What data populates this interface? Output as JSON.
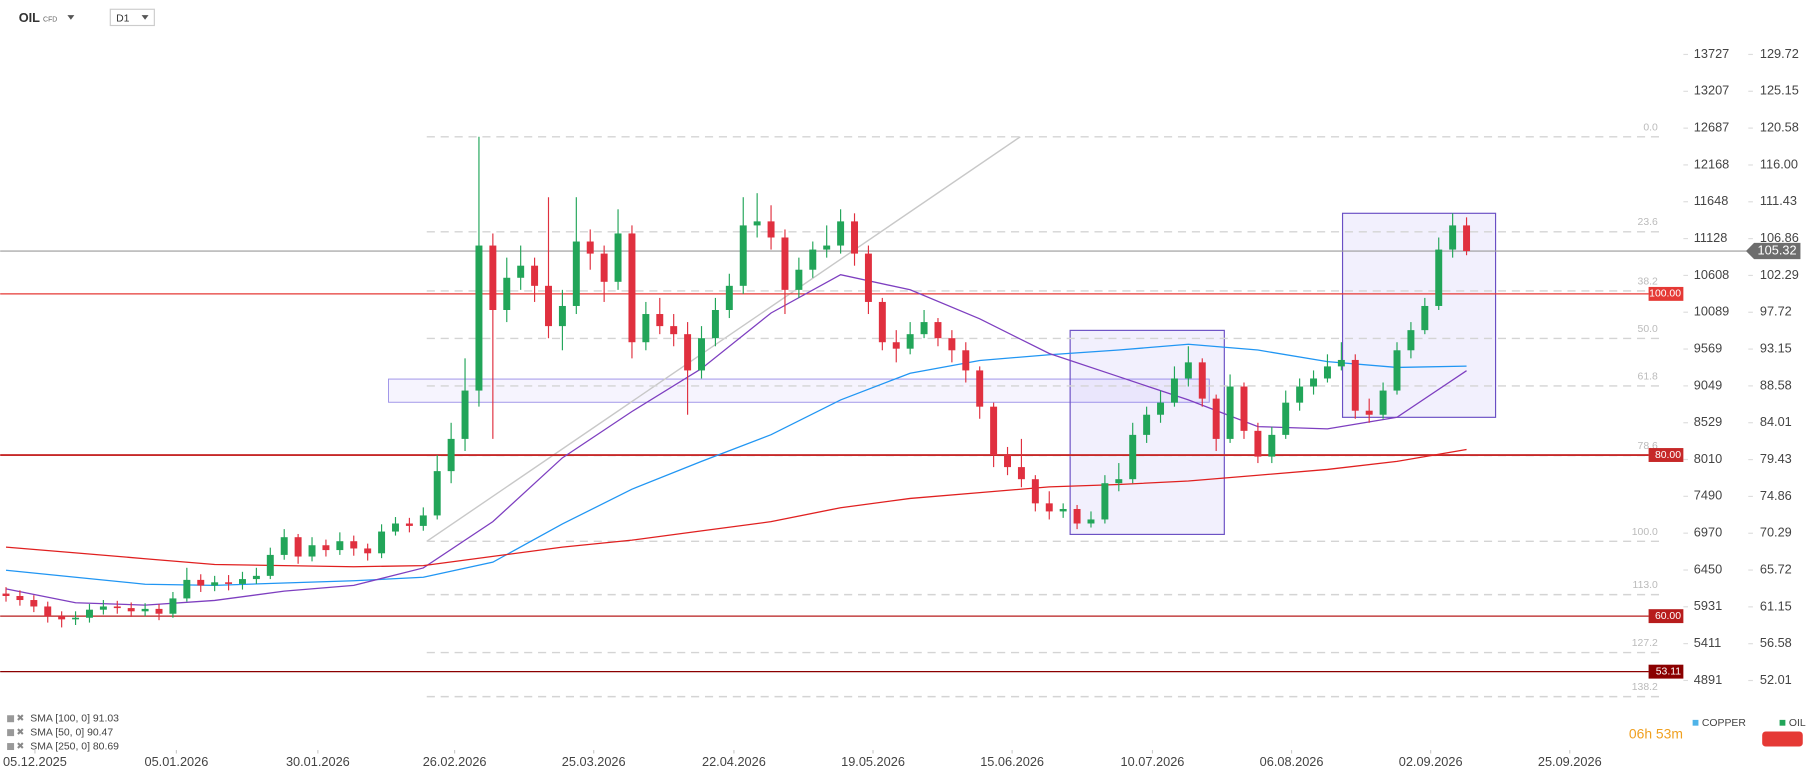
{
  "chart_data": {
    "type": "candlestick",
    "symbol": "OIL",
    "instrument_type": "CFD",
    "timeframe": "D1",
    "up_color": "#22a559",
    "down_color": "#e0303f",
    "x": [
      0,
      1,
      2,
      3,
      4,
      5,
      6,
      7,
      8,
      9,
      10,
      11,
      12,
      13,
      14,
      15,
      16,
      17,
      18,
      19,
      20,
      21,
      22,
      23,
      24,
      25,
      26,
      27,
      28,
      29,
      30,
      31,
      32,
      33,
      34,
      35,
      36,
      37,
      38,
      39,
      40,
      41,
      42,
      43,
      44,
      45,
      46,
      47,
      48,
      49,
      50,
      51,
      52,
      53,
      54,
      55,
      56,
      57,
      58,
      59,
      60,
      61,
      62,
      63,
      64,
      65,
      66,
      67,
      68,
      69,
      70,
      71,
      72,
      73,
      74,
      75,
      76,
      77,
      78,
      79,
      80,
      81,
      82,
      83,
      84,
      85,
      86,
      87,
      88,
      89,
      90,
      91,
      92,
      93,
      94,
      95,
      96,
      97,
      98,
      99,
      100,
      101,
      102,
      103,
      104,
      105
    ],
    "open": [
      62.8,
      62.5,
      62.0,
      61.2,
      60.0,
      59.6,
      59.8,
      60.8,
      61.2,
      61.0,
      60.6,
      60.9,
      60.3,
      62.2,
      64.5,
      63.8,
      64.2,
      64.0,
      64.6,
      65.0,
      67.6,
      69.8,
      67.4,
      68.8,
      68.2,
      69.3,
      68.4,
      67.8,
      70.5,
      71.5,
      71.2,
      72.5,
      78.0,
      82.0,
      88.0,
      106.0,
      98.0,
      102.0,
      103.5,
      101.0,
      96.0,
      98.5,
      106.5,
      105.0,
      101.5,
      107.5,
      94.0,
      97.5,
      96.0,
      95.0,
      90.5,
      94.5,
      98.0,
      101.0,
      108.5,
      109.0,
      107.0,
      100.5,
      103.0,
      105.5,
      106.0,
      109.0,
      105.0,
      99.0,
      94.0,
      93.2,
      95.0,
      96.5,
      94.5,
      93.0,
      90.5,
      86.0,
      80.0,
      78.5,
      77.0,
      74.0,
      73.0,
      73.3,
      71.5,
      72.0,
      76.5,
      77.0,
      82.5,
      85.0,
      86.5,
      89.5,
      91.5,
      87.0,
      82.0,
      88.5,
      83.0,
      79.8,
      82.5,
      86.5,
      88.5,
      89.5,
      91.0,
      91.8,
      85.5,
      85.0,
      88.0,
      93.0,
      95.5,
      98.5,
      105.5,
      108.5
    ],
    "high": [
      63.6,
      63.2,
      62.6,
      61.8,
      60.6,
      60.6,
      61.5,
      62.0,
      61.9,
      61.7,
      61.6,
      61.5,
      63.0,
      66.0,
      65.2,
      65.0,
      65.1,
      65.5,
      66.0,
      68.5,
      70.8,
      70.2,
      69.8,
      69.5,
      70.4,
      70.0,
      69.0,
      71.4,
      72.3,
      72.2,
      73.5,
      80.0,
      84.0,
      92.0,
      119.5,
      107.5,
      104.5,
      106.0,
      104.5,
      112.0,
      100.5,
      112.0,
      108.0,
      106.0,
      110.5,
      108.5,
      99.0,
      99.5,
      97.5,
      96.5,
      96.0,
      99.5,
      102.5,
      112.0,
      112.5,
      111.0,
      108.0,
      104.5,
      106.5,
      108.5,
      110.5,
      110.0,
      106.0,
      99.5,
      95.5,
      96.5,
      98.0,
      97.0,
      95.5,
      94.0,
      91.0,
      86.5,
      81.0,
      82.0,
      77.5,
      75.5,
      74.0,
      73.8,
      73.0,
      77.5,
      79.0,
      84.0,
      86.0,
      88.0,
      91.0,
      93.5,
      92.0,
      87.5,
      90.0,
      89.0,
      84.0,
      83.5,
      88.0,
      89.5,
      90.5,
      92.5,
      94.0,
      92.5,
      87.0,
      89.0,
      94.0,
      96.5,
      99.5,
      107.0,
      110.0,
      109.5
    ],
    "low": [
      61.8,
      61.3,
      60.5,
      59.2,
      58.6,
      58.9,
      59.2,
      60.2,
      60.3,
      59.9,
      60.0,
      59.5,
      59.8,
      61.8,
      63.0,
      63.1,
      63.2,
      63.3,
      64.0,
      64.6,
      67.0,
      66.5,
      66.8,
      67.4,
      67.6,
      67.5,
      66.9,
      67.2,
      70.0,
      70.4,
      70.6,
      72.0,
      76.5,
      80.5,
      86.0,
      82.0,
      96.5,
      100.5,
      99.0,
      94.5,
      93.0,
      97.5,
      103.0,
      99.0,
      100.5,
      92.0,
      93.0,
      95.0,
      93.5,
      85.0,
      89.5,
      93.5,
      97.0,
      100.0,
      107.0,
      105.5,
      97.5,
      99.5,
      102.0,
      104.5,
      105.0,
      103.5,
      97.5,
      93.0,
      91.5,
      92.5,
      94.5,
      93.5,
      91.5,
      89.0,
      84.5,
      78.5,
      77.5,
      76.0,
      73.0,
      72.0,
      72.2,
      70.8,
      71.0,
      71.5,
      75.5,
      76.5,
      81.5,
      84.0,
      86.0,
      88.5,
      86.0,
      80.5,
      81.5,
      82.0,
      79.0,
      79.0,
      82.0,
      85.5,
      87.5,
      89.0,
      90.5,
      84.5,
      84.0,
      84.5,
      87.5,
      92.0,
      95.0,
      98.0,
      104.5,
      104.8
    ],
    "close": [
      62.5,
      62.0,
      61.2,
      60.0,
      59.6,
      59.8,
      60.8,
      61.2,
      61.0,
      60.6,
      60.9,
      60.3,
      62.2,
      64.5,
      63.8,
      64.2,
      64.0,
      64.6,
      65.0,
      67.6,
      69.8,
      67.4,
      68.8,
      68.2,
      69.3,
      68.4,
      67.8,
      70.5,
      71.5,
      71.2,
      72.5,
      78.0,
      82.0,
      88.0,
      106.0,
      98.0,
      102.0,
      103.5,
      101.0,
      96.0,
      98.5,
      106.5,
      105.0,
      101.5,
      107.5,
      94.0,
      97.5,
      96.0,
      95.0,
      90.5,
      94.5,
      98.0,
      101.0,
      108.5,
      109.0,
      107.0,
      100.5,
      103.0,
      105.5,
      106.0,
      109.0,
      105.0,
      99.0,
      94.0,
      93.2,
      95.0,
      96.5,
      94.5,
      93.0,
      90.5,
      86.0,
      80.0,
      78.5,
      77.0,
      74.0,
      73.0,
      73.3,
      71.5,
      72.0,
      76.5,
      77.0,
      82.5,
      85.0,
      86.5,
      89.5,
      91.5,
      87.0,
      82.0,
      88.5,
      83.0,
      79.8,
      82.5,
      86.5,
      88.5,
      89.5,
      91.0,
      91.8,
      85.5,
      85.0,
      88.0,
      93.0,
      95.5,
      98.5,
      105.5,
      108.5,
      105.32
    ],
    "xlim": [
      -0.42,
      119.17
    ],
    "xticks": [
      {
        "value": 2.08,
        "label": "05.12.2025"
      },
      {
        "value": 12.25,
        "label": "05.01.2026"
      },
      {
        "value": 22.42,
        "label": "30.01.2026"
      },
      {
        "value": 32.25,
        "label": "26.02.2026"
      },
      {
        "value": 42.25,
        "label": "25.03.2026"
      },
      {
        "value": 52.33,
        "label": "22.04.2026"
      },
      {
        "value": 62.33,
        "label": "19.05.2026"
      },
      {
        "value": 72.33,
        "label": "15.06.2026"
      },
      {
        "value": 82.42,
        "label": "10.07.2026"
      },
      {
        "value": 92.42,
        "label": "06.08.2026"
      },
      {
        "value": 102.42,
        "label": "02.09.2026"
      },
      {
        "value": 112.42,
        "label": "25.09.2026"
      }
    ],
    "ylim": [
      43.67,
      135.04
    ],
    "yticks": [
      129.72,
      125.15,
      120.58,
      {
        "value": 116,
        "label": "116.00"
      },
      111.43,
      106.86,
      102.29,
      97.72,
      93.15,
      88.58,
      84.01,
      79.43,
      74.86,
      70.29,
      65.72,
      61.15,
      56.58,
      52.01
    ],
    "y2lim": [
      3942,
      14332
    ],
    "y2ticks": [
      13727,
      13207,
      12687,
      12168,
      11648,
      11128,
      10608,
      10089,
      9569,
      9049,
      8529,
      8010,
      7490,
      6970,
      6450,
      5931,
      5411,
      4891
    ],
    "last_price": 105.32,
    "levels": [
      {
        "value": 100,
        "label": "100.00",
        "color": "#e53935"
      },
      {
        "value": 80,
        "label": "80.00",
        "color": "#c62828"
      },
      {
        "value": 60,
        "label": "60.00",
        "color": "#b71c1c"
      },
      {
        "value": 53.11,
        "label": "53.11",
        "color": "#8b0000"
      }
    ],
    "fib": [
      {
        "label": "0.0",
        "value": 119.5
      },
      {
        "label": "23.6",
        "value": 107.71
      },
      {
        "label": "38.2",
        "value": 100.37
      },
      {
        "label": "50.0",
        "value": 94.47
      },
      {
        "label": "61.8",
        "value": 88.57
      },
      {
        "label": "78.6",
        "value": 79.93
      },
      {
        "label": "100.0",
        "value": 69.29
      },
      {
        "label": "113.0",
        "value": 62.67
      },
      {
        "label": "127.2",
        "value": 55.48
      },
      {
        "label": "138.2",
        "value": 50.01
      }
    ],
    "indicators": [
      {
        "name": "SMA [100, 0]",
        "color": "#2196f3",
        "last": 91.03,
        "x": [
          0,
          5,
          10,
          15,
          20,
          25,
          30,
          35,
          40,
          45,
          50,
          55,
          60,
          65,
          70,
          75,
          80,
          85,
          90,
          95,
          100,
          105
        ],
        "values": [
          65.69,
          64.83,
          63.96,
          63.82,
          64.11,
          64.39,
          64.83,
          66.7,
          71.44,
          75.76,
          79.21,
          82.52,
          86.84,
          90.15,
          91.73,
          92.45,
          93.03,
          93.75,
          93.03,
          91.59,
          90.87,
          91.03
        ]
      },
      {
        "name": "SMA [50, 0]",
        "color": "#7e3fc0",
        "last": 90.47,
        "x": [
          0,
          5,
          10,
          15,
          20,
          25,
          30,
          35,
          40,
          45,
          50,
          55,
          60,
          65,
          70,
          75,
          80,
          85,
          90,
          95,
          100,
          105
        ],
        "values": [
          63.39,
          61.66,
          61.37,
          61.95,
          63.1,
          63.82,
          65.98,
          71.73,
          79.65,
          85.4,
          90.73,
          97.63,
          102.38,
          100.51,
          96.91,
          92.6,
          89.72,
          86.84,
          83.53,
          83.24,
          84.68,
          90.47
        ]
      },
      {
        "name": "SMA [250, 0]",
        "color": "#e02020",
        "last": 80.69,
        "x": [
          0,
          5,
          10,
          15,
          20,
          25,
          30,
          35,
          40,
          45,
          50,
          55,
          60,
          65,
          70,
          75,
          80,
          85,
          90,
          95,
          100,
          105
        ],
        "values": [
          68.57,
          67.85,
          67.13,
          66.41,
          66.27,
          66.13,
          66.27,
          67.42,
          68.57,
          69.43,
          70.58,
          71.73,
          73.46,
          74.61,
          75.33,
          76.05,
          76.34,
          76.77,
          77.49,
          78.21,
          79.21,
          80.69
        ]
      }
    ],
    "legend": [
      {
        "name": "COPPER",
        "color": "#4fb3e8"
      },
      {
        "name": "OIL",
        "color": "#22a559"
      }
    ],
    "timer": "06h 53m"
  }
}
